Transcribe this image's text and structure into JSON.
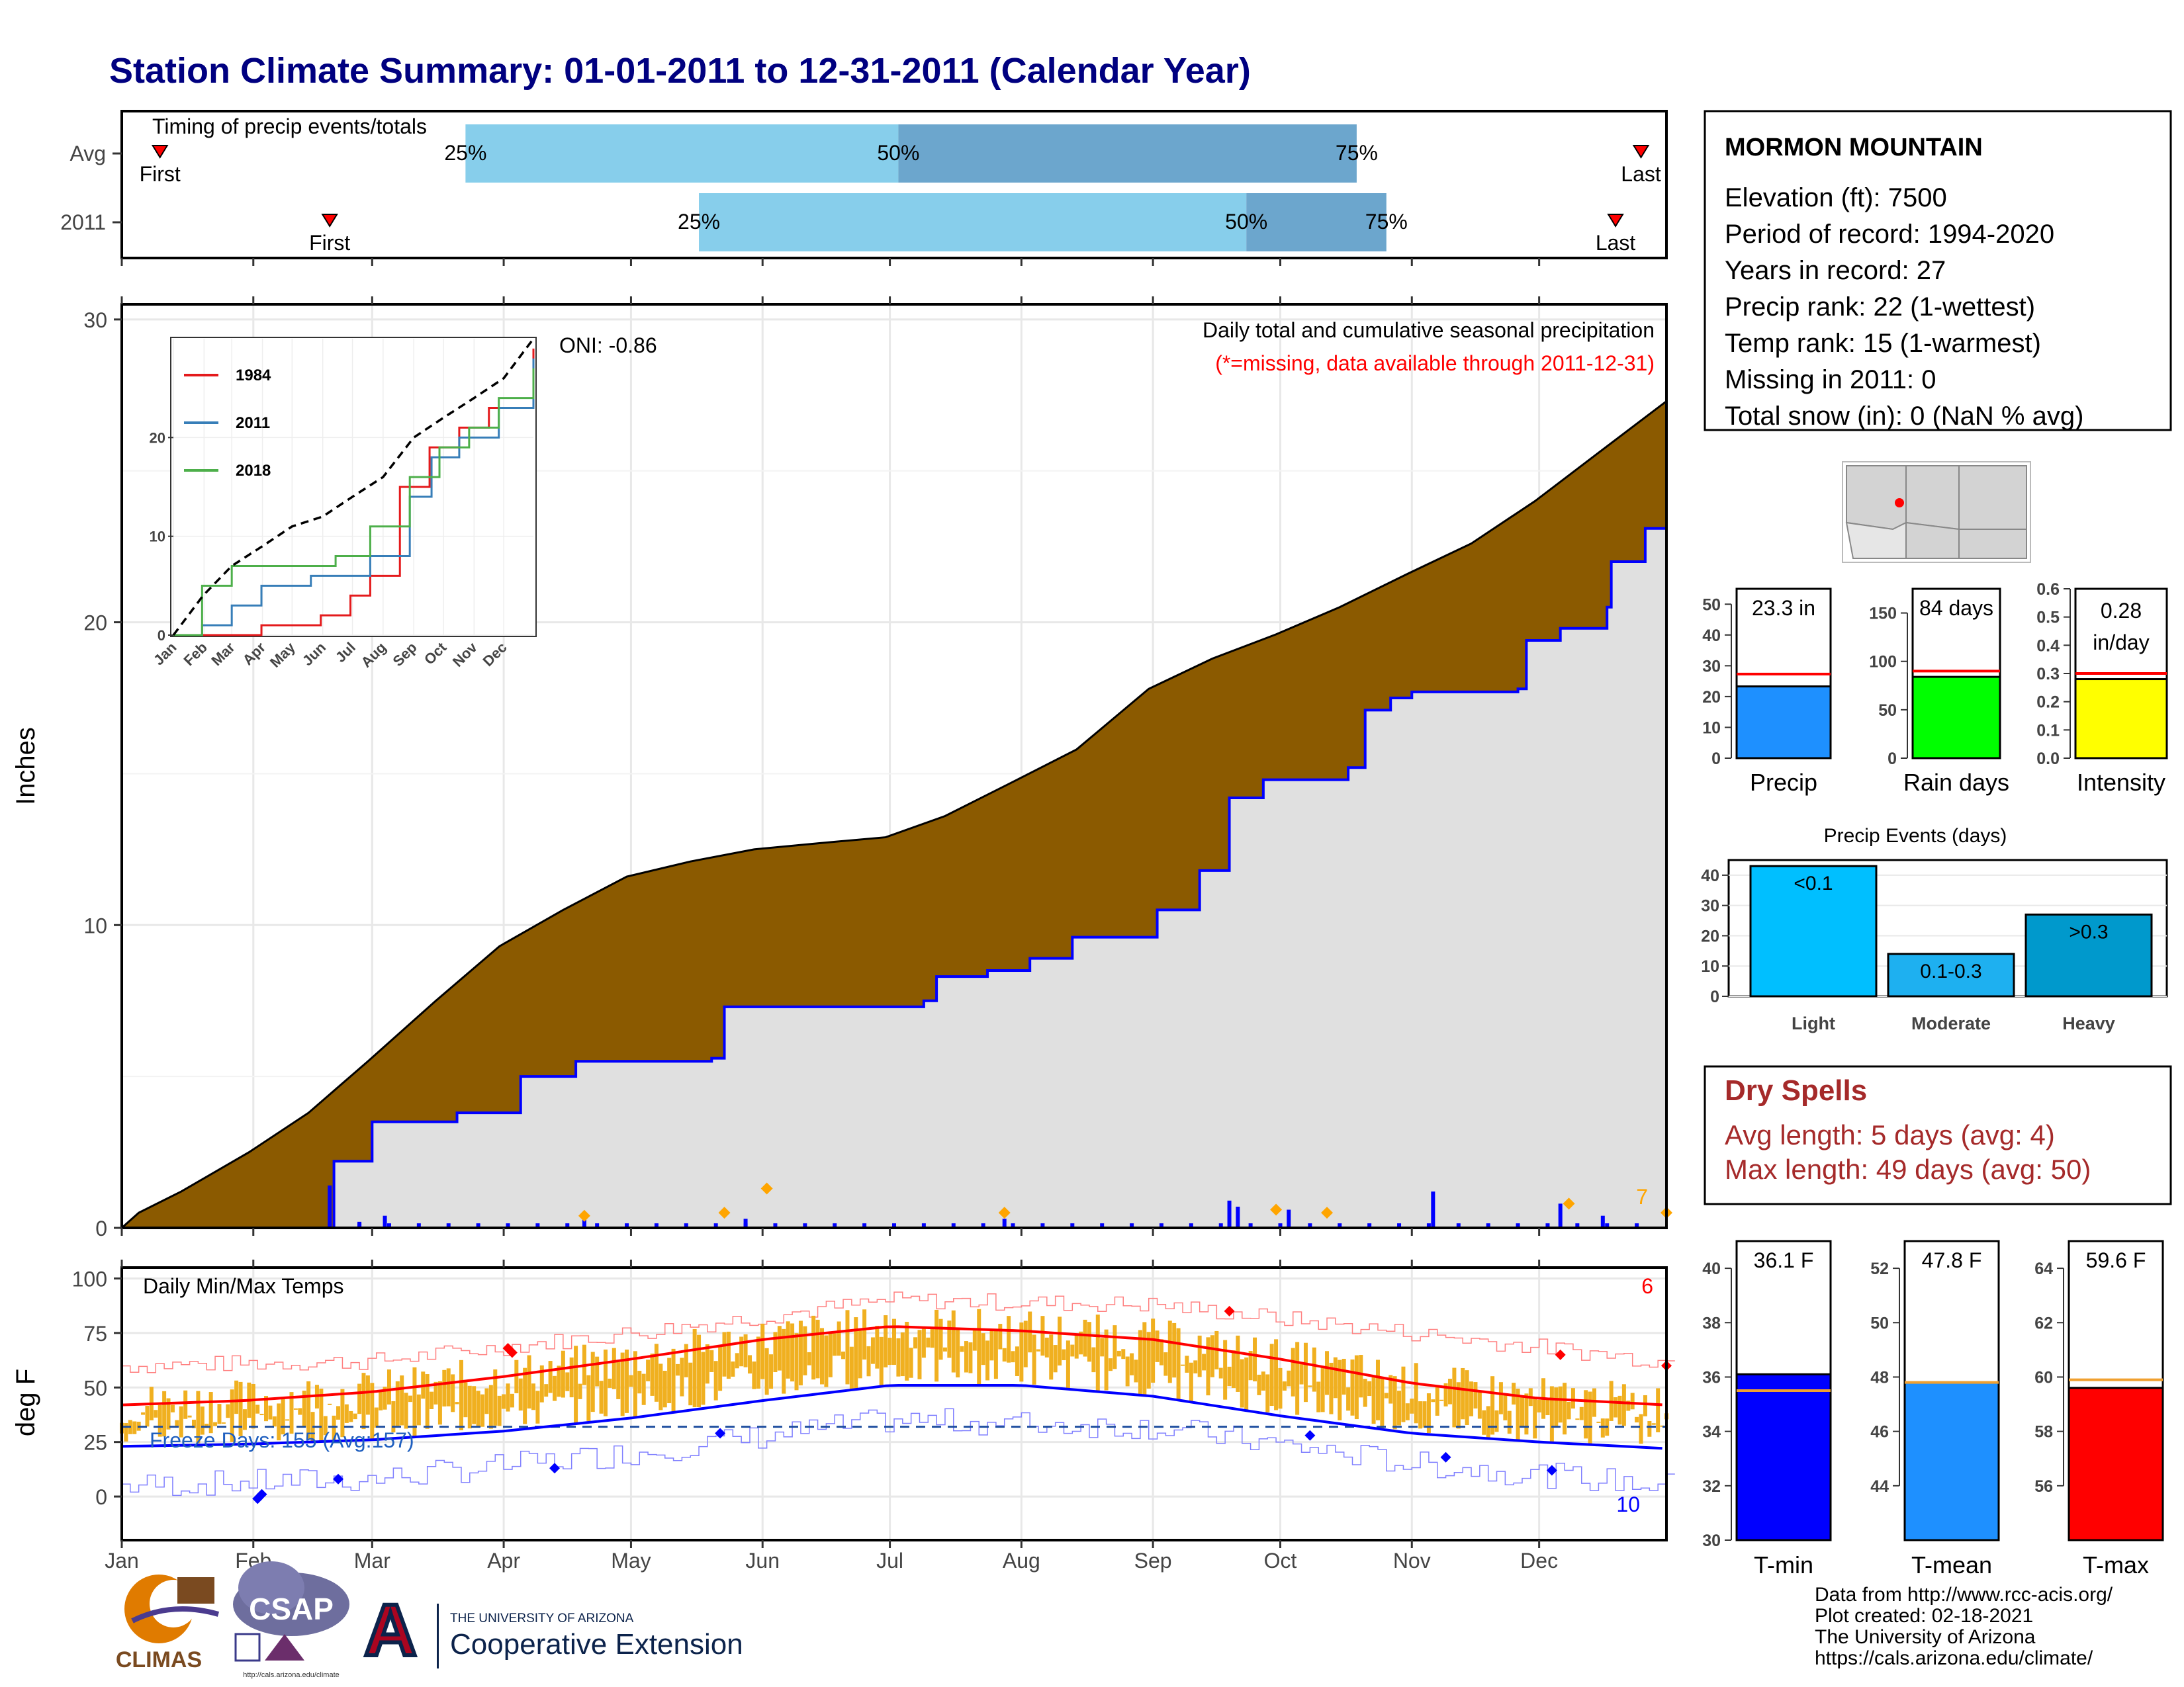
{
  "title": "Station Climate Summary: 01-01-2011 to 12-31-2011 (Calendar Year)",
  "colors": {
    "title": "#000080",
    "precip_fill_observed": "#8B5A00",
    "precip_fill_avg": "#E0E0E0",
    "avg_line": "#0000FF",
    "daily_bar": "#0000FF",
    "extreme_marker": "#FFA500",
    "timing_light": "#87CEEB",
    "timing_dark": "#6CA6CD",
    "temp_band": "#F0B020",
    "tmax_line": "#FF0000",
    "tmin_line": "#0000FF",
    "dry_spells": "#A52A2A",
    "data_note": "#FF0000"
  },
  "months": [
    "Jan",
    "Feb",
    "Mar",
    "Apr",
    "May",
    "Jun",
    "Jul",
    "Aug",
    "Sep",
    "Oct",
    "Nov",
    "Dec"
  ],
  "timing": {
    "title": "Timing of precip events/totals",
    "rows": [
      {
        "label": "Avg",
        "first": "First",
        "last": "Last",
        "p25": "25%",
        "p50": "50%",
        "p75": "75%",
        "first_day": 10,
        "p25_day": 82,
        "p50_day": 184,
        "p75_day": 292,
        "last_day": 359
      },
      {
        "label": "2011",
        "first": "First",
        "last": "Last",
        "p25": "25%",
        "p50": "50%",
        "p75": "75%",
        "first_day": 50,
        "p25_day": 137,
        "p50_day": 266,
        "p75_day": 299,
        "last_day": 353
      }
    ]
  },
  "station": {
    "name": "MORMON MOUNTAIN",
    "lines": [
      "Elevation (ft): 7500",
      "Period of record: 1994-2020",
      "Years in record: 27",
      "Precip rank: 22 (1-wettest)",
      "Temp rank: 15 (1-warmest)",
      "Missing in 2011: 0",
      "Total snow (in): 0 (NaN % avg)"
    ]
  },
  "precip_panel": {
    "ylabel": "Inches",
    "note1": "Daily total and cumulative seasonal precipitation",
    "note2": "(*=missing, data available through 2011-12-31)",
    "oni": "ONI: -0.86",
    "corner_count": "7",
    "y_ticks": [
      "0",
      "10",
      "20",
      "30"
    ]
  },
  "inset": {
    "y_ticks": [
      "0",
      "10",
      "20"
    ],
    "x_ticks": [
      "Jan",
      "Feb",
      "Mar",
      "Apr",
      "May",
      "Jun",
      "Jul",
      "Aug",
      "Sep",
      "Oct",
      "Nov",
      "Dec"
    ],
    "legend": [
      {
        "name": "1984",
        "color": "#E41A1C"
      },
      {
        "name": "2011",
        "color": "#377EB8"
      },
      {
        "name": "2018",
        "color": "#4DAF4A"
      }
    ]
  },
  "temp_panel": {
    "ylabel": "deg F",
    "title": "Daily Min/Max Temps",
    "freeze": "Freeze Days: 155 (Avg:157)",
    "count_high": "6",
    "count_low": "10",
    "y_ticks": [
      "0",
      "25",
      "50",
      "75",
      "100"
    ]
  },
  "mini_bars": [
    {
      "name": "Precip",
      "value_label": "23.3 in",
      "ticks": [
        "0",
        "10",
        "20",
        "30",
        "40",
        "50"
      ],
      "color": "#1E90FF"
    },
    {
      "name": "Rain days",
      "value_label": "84 days",
      "ticks": [
        "0",
        "50",
        "100",
        "150"
      ],
      "color": "#00FF00"
    },
    {
      "name": "Intensity",
      "value_label": "0.28 in/day",
      "value_line1": "0.28",
      "value_line2": "in/day",
      "ticks": [
        "0.0",
        "0.1",
        "0.2",
        "0.3",
        "0.4",
        "0.5",
        "0.6"
      ],
      "color": "#FFFF00"
    }
  ],
  "precip_events": {
    "title": "Precip Events (days)",
    "ticks": [
      "0",
      "10",
      "20",
      "30",
      "40"
    ],
    "categories": [
      "Light",
      "Moderate",
      "Heavy"
    ],
    "bar_labels": [
      "<0.1",
      "0.1-0.3",
      ">0.3"
    ]
  },
  "dry_spells": {
    "title": "Dry Spells",
    "avg": "Avg length: 5 days (avg: 4)",
    "max": "Max length: 49 days (avg: 50)"
  },
  "temp_bars": [
    {
      "name": "T-min",
      "value_label": "36.1 F",
      "ticks": [
        "30",
        "32",
        "34",
        "36",
        "38",
        "40"
      ],
      "color": "#0000FF"
    },
    {
      "name": "T-mean",
      "value_label": "47.8 F",
      "ticks": [
        "44",
        "46",
        "48",
        "50",
        "52"
      ],
      "color": "#1E90FF"
    },
    {
      "name": "T-max",
      "value_label": "59.6 F",
      "ticks": [
        "56",
        "58",
        "60",
        "62",
        "64"
      ],
      "color": "#FF0000"
    }
  ],
  "footer": {
    "lines": [
      "Data from http://www.rcc-acis.org/",
      "Plot created: 02-18-2021",
      "The University of Arizona",
      "https://cals.arizona.edu/climate/"
    ],
    "logo_climas": "CLIMAS",
    "logo_csap": "CSAP",
    "logo_csap_url": "http://cals.arizona.edu/climate",
    "ua_small": "THE UNIVERSITY OF ARIZONA",
    "ua_big": "Cooperative Extension",
    "ua_letter": "A"
  },
  "chart_data": [
    {
      "type": "area",
      "title": "Daily total and cumulative seasonal precipitation",
      "ylabel": "Inches",
      "ylim": [
        0,
        30
      ],
      "x": "day of year (Jan 1 - Dec 31, 2011)",
      "series": [
        {
          "name": "cumulative observed",
          "points": [
            [
              1,
              0
            ],
            [
              5,
              0.5
            ],
            [
              15,
              1.2
            ],
            [
              31,
              2.5
            ],
            [
              45,
              3.8
            ],
            [
              59,
              5.5
            ],
            [
              75,
              7.5
            ],
            [
              90,
              9.3
            ],
            [
              105,
              10.5
            ],
            [
              120,
              11.6
            ],
            [
              135,
              12.1
            ],
            [
              150,
              12.5
            ],
            [
              165,
              12.7
            ],
            [
              181,
              12.9
            ],
            [
              195,
              13.6
            ],
            [
              212,
              14.8
            ],
            [
              226,
              15.8
            ],
            [
              243,
              17.8
            ],
            [
              258,
              18.8
            ],
            [
              273,
              19.6
            ],
            [
              288,
              20.5
            ],
            [
              304,
              21.6
            ],
            [
              319,
              22.6
            ],
            [
              334,
              24.0
            ],
            [
              349,
              25.6
            ],
            [
              365,
              27.3
            ]
          ]
        },
        {
          "name": "cumulative average",
          "points": [
            [
              1,
              0
            ],
            [
              50,
              0
            ],
            [
              51,
              2.2
            ],
            [
              60,
              3.5
            ],
            [
              80,
              3.8
            ],
            [
              95,
              5.0
            ],
            [
              108,
              5.5
            ],
            [
              140,
              5.6
            ],
            [
              143,
              7.3
            ],
            [
              190,
              7.5
            ],
            [
              193,
              8.3
            ],
            [
              205,
              8.5
            ],
            [
              215,
              8.9
            ],
            [
              225,
              9.6
            ],
            [
              245,
              10.5
            ],
            [
              255,
              11.8
            ],
            [
              262,
              14.2
            ],
            [
              270,
              14.8
            ],
            [
              290,
              15.2
            ],
            [
              294,
              17.1
            ],
            [
              300,
              17.5
            ],
            [
              305,
              17.7
            ],
            [
              330,
              17.8
            ],
            [
              332,
              19.4
            ],
            [
              340,
              19.8
            ],
            [
              351,
              20.5
            ],
            [
              352,
              22.0
            ],
            [
              360,
              23.1
            ],
            [
              365,
              23.3
            ]
          ]
        }
      ],
      "daily_events": [
        [
          50,
          1.4
        ],
        [
          57,
          0.2
        ],
        [
          63,
          0.4
        ],
        [
          110,
          0.3
        ],
        [
          148,
          0.3
        ],
        [
          209,
          0.3
        ],
        [
          262,
          0.9
        ],
        [
          264,
          0.7
        ],
        [
          276,
          0.6
        ],
        [
          310,
          1.2
        ],
        [
          340,
          0.8
        ],
        [
          350,
          0.4
        ]
      ],
      "extreme_markers": [
        [
          110,
          0.4
        ],
        [
          143,
          0.5
        ],
        [
          153,
          1.3
        ],
        [
          209,
          0.5
        ],
        [
          273,
          0.6
        ],
        [
          285,
          0.5
        ],
        [
          342,
          0.8
        ],
        [
          372,
          0.5
        ]
      ]
    },
    {
      "type": "line",
      "title": "inset cumulative",
      "ylim": [
        0,
        30
      ],
      "series": [
        {
          "name": "1984",
          "points": [
            [
              1,
              0
            ],
            [
              60,
              0
            ],
            [
              90,
              1
            ],
            [
              150,
              2
            ],
            [
              180,
              4
            ],
            [
              200,
              6
            ],
            [
              230,
              15
            ],
            [
              260,
              19
            ],
            [
              290,
              21
            ],
            [
              320,
              23
            ],
            [
              365,
              29
            ]
          ]
        },
        {
          "name": "2011",
          "points": [
            [
              1,
              0
            ],
            [
              30,
              1
            ],
            [
              60,
              3
            ],
            [
              90,
              5
            ],
            [
              140,
              6
            ],
            [
              200,
              8
            ],
            [
              240,
              14
            ],
            [
              262,
              18
            ],
            [
              290,
              20
            ],
            [
              330,
              23
            ],
            [
              365,
              28
            ]
          ]
        },
        {
          "name": "2018",
          "points": [
            [
              1,
              0
            ],
            [
              30,
              5
            ],
            [
              60,
              7
            ],
            [
              120,
              7
            ],
            [
              165,
              8
            ],
            [
              200,
              11
            ],
            [
              240,
              16
            ],
            [
              270,
              19
            ],
            [
              300,
              21
            ],
            [
              330,
              24
            ],
            [
              365,
              27
            ]
          ]
        },
        {
          "name": "average",
          "points": [
            [
              1,
              0
            ],
            [
              31,
              4
            ],
            [
              60,
              7
            ],
            [
              91,
              9
            ],
            [
              121,
              11
            ],
            [
              152,
              12
            ],
            [
              182,
              14
            ],
            [
              213,
              16
            ],
            [
              244,
              20
            ],
            [
              274,
              22
            ],
            [
              305,
              24
            ],
            [
              335,
              26
            ],
            [
              365,
              30
            ]
          ]
        }
      ]
    },
    {
      "type": "area",
      "title": "Daily Min/Max Temps",
      "ylabel": "deg F",
      "ylim": [
        -20,
        100
      ],
      "series": [
        {
          "name": "avg max",
          "points": [
            [
              1,
              42
            ],
            [
              30,
              44
            ],
            [
              60,
              48
            ],
            [
              91,
              55
            ],
            [
              121,
              63
            ],
            [
              152,
              72
            ],
            [
              182,
              78
            ],
            [
              213,
              76
            ],
            [
              244,
              72
            ],
            [
              274,
              63
            ],
            [
              305,
              52
            ],
            [
              335,
              45
            ],
            [
              365,
              42
            ]
          ]
        },
        {
          "name": "avg min",
          "points": [
            [
              1,
              23
            ],
            [
              30,
              24
            ],
            [
              60,
              26
            ],
            [
              91,
              30
            ],
            [
              121,
              36
            ],
            [
              152,
              44
            ],
            [
              182,
              51
            ],
            [
              213,
              51
            ],
            [
              244,
              46
            ],
            [
              274,
              37
            ],
            [
              305,
              29
            ],
            [
              335,
              25
            ],
            [
              365,
              22
            ]
          ]
        },
        {
          "name": "record high",
          "points": [
            [
              1,
              60
            ],
            [
              60,
              62
            ],
            [
              121,
              75
            ],
            [
              182,
              90
            ],
            [
              244,
              88
            ],
            [
              305,
              75
            ],
            [
              365,
              62
            ]
          ]
        },
        {
          "name": "record low",
          "points": [
            [
              1,
              5
            ],
            [
              60,
              8
            ],
            [
              121,
              20
            ],
            [
              182,
              35
            ],
            [
              244,
              32
            ],
            [
              305,
              15
            ],
            [
              365,
              5
            ]
          ]
        }
      ],
      "freeze_line": 32
    },
    {
      "type": "bar",
      "categories": [
        "Precip"
      ],
      "values": [
        23.3
      ],
      "ylim": [
        0,
        55
      ],
      "reference": 27.3
    },
    {
      "type": "bar",
      "categories": [
        "Rain days"
      ],
      "values": [
        84
      ],
      "ylim": [
        0,
        175
      ],
      "reference": 90
    },
    {
      "type": "bar",
      "categories": [
        "Intensity"
      ],
      "values": [
        0.28
      ],
      "ylim": [
        0,
        0.6
      ],
      "reference": 0.3
    },
    {
      "type": "bar",
      "title": "Precip Events (days)",
      "categories": [
        "Light",
        "Moderate",
        "Heavy"
      ],
      "values": [
        43,
        14,
        27
      ],
      "ylim": [
        0,
        45
      ]
    },
    {
      "type": "bar",
      "categories": [
        "T-min"
      ],
      "values": [
        36.1
      ],
      "ylim": [
        30,
        41
      ],
      "reference": 35.5
    },
    {
      "type": "bar",
      "categories": [
        "T-mean"
      ],
      "values": [
        47.8
      ],
      "ylim": [
        42,
        53
      ],
      "reference": 47.8
    },
    {
      "type": "bar",
      "categories": [
        "T-max"
      ],
      "values": [
        59.6
      ],
      "ylim": [
        54,
        65
      ],
      "reference": 59.9
    }
  ]
}
